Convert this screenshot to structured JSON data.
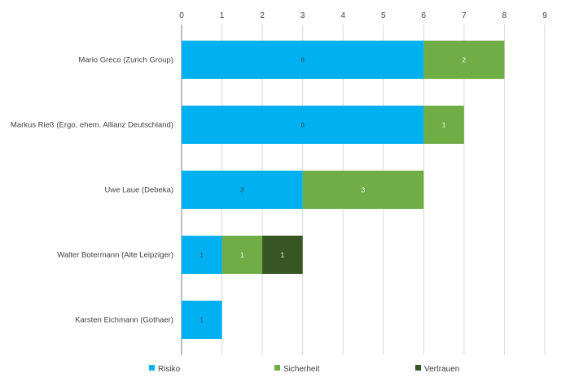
{
  "chart_data": {
    "type": "bar",
    "orientation": "horizontal",
    "stacked": true,
    "title": "",
    "xlabel": "",
    "ylabel": "",
    "xlim": [
      0,
      9
    ],
    "x_ticks": [
      "0",
      "1",
      "2",
      "3",
      "4",
      "5",
      "6",
      "7",
      "8",
      "9"
    ],
    "x_axis_position": "top",
    "grid": true,
    "legend_position": "bottom",
    "categories": [
      "Mario Greco (Zurich Group)",
      "Markus Rieß (Ergo, ehem. Allianz Deutschland)",
      "Uwe Laue (Debeka)",
      "Walter Botermann (Alte Leipziger)",
      "Karsten Eichmann (Gothaer)"
    ],
    "series": [
      {
        "name": "Risiko",
        "color": "#00b0f0",
        "label_color": "#3a4a5a",
        "values": [
          6,
          6,
          3,
          1,
          1
        ]
      },
      {
        "name": "Sicherheit",
        "color": "#70ad47",
        "label_color": "#ffffff",
        "values": [
          2,
          1,
          3,
          1,
          0
        ]
      },
      {
        "name": "Vertrauen",
        "color": "#375623",
        "label_color": "#ffffff",
        "values": [
          0,
          0,
          0,
          1,
          0
        ]
      }
    ]
  }
}
